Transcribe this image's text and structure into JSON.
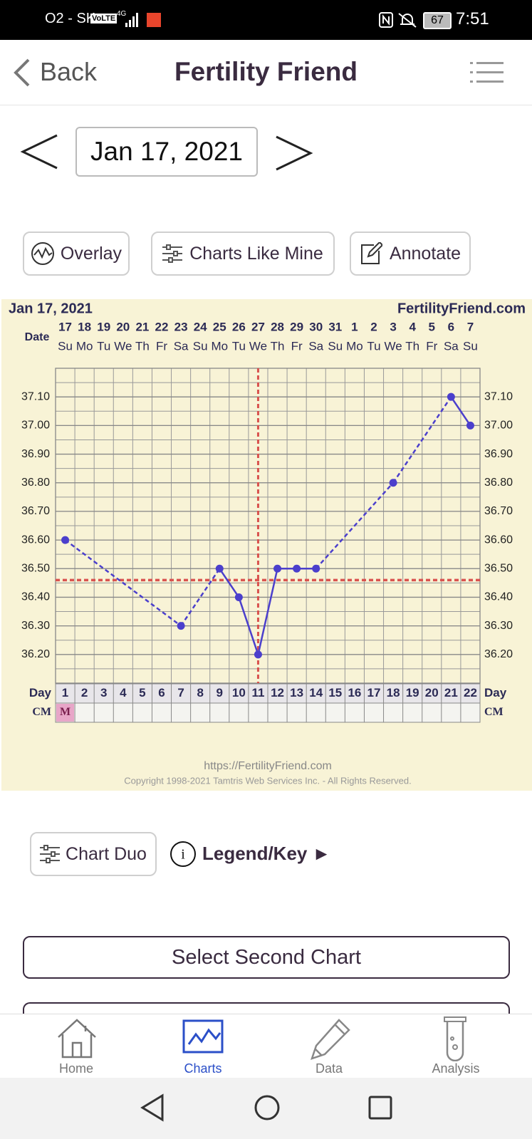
{
  "status_bar": {
    "carrier": "O2 - SK",
    "volte": "VoLTE",
    "network": "4G",
    "battery": "67",
    "time": "7:51"
  },
  "header": {
    "back": "Back",
    "title": "Fertility Friend"
  },
  "date_nav": {
    "date": "Jan 17, 2021"
  },
  "toolbar": [
    "Overlay",
    "Charts Like Mine",
    "Annotate"
  ],
  "chart_data": {
    "type": "line",
    "title": "Jan 17, 2021",
    "site": "FertilityFriend.com",
    "date_label": "Date",
    "day_label": "Day",
    "cm_label": "CM",
    "dates": [
      17,
      18,
      19,
      20,
      21,
      22,
      23,
      24,
      25,
      26,
      27,
      28,
      29,
      30,
      31,
      1,
      2,
      3,
      4,
      5,
      6,
      7
    ],
    "weekdays": [
      "Su",
      "Mo",
      "Tu",
      "We",
      "Th",
      "Fr",
      "Sa",
      "Su",
      "Mo",
      "Tu",
      "We",
      "Th",
      "Fr",
      "Sa",
      "Su",
      "Mo",
      "Tu",
      "We",
      "Th",
      "Fr",
      "Sa",
      "Su"
    ],
    "days": [
      1,
      2,
      3,
      4,
      5,
      6,
      7,
      8,
      9,
      10,
      11,
      12,
      13,
      14,
      15,
      16,
      17,
      18,
      19,
      20,
      21,
      22
    ],
    "cm": [
      "M",
      null,
      null,
      null,
      null,
      null,
      null,
      null,
      null,
      null,
      null,
      null,
      null,
      null,
      null,
      null,
      null,
      null,
      null,
      null,
      null,
      null
    ],
    "series": [
      {
        "name": "Temperature",
        "color": "#4b3fcc",
        "values": [
          36.6,
          null,
          null,
          null,
          null,
          null,
          36.3,
          null,
          36.5,
          36.4,
          36.2,
          36.5,
          36.5,
          36.5,
          null,
          null,
          null,
          36.8,
          null,
          null,
          37.1,
          37.0
        ]
      }
    ],
    "coverline": 36.46,
    "ovulation_day": 11,
    "ylim": [
      36.1,
      37.2
    ],
    "yticks": [
      {
        "value": 36.2,
        "label": "36.20"
      },
      {
        "value": 36.3,
        "label": "36.30"
      },
      {
        "value": 36.4,
        "label": "36.40"
      },
      {
        "value": 36.5,
        "label": "36.50"
      },
      {
        "value": 36.6,
        "label": "36.60"
      },
      {
        "value": 36.7,
        "label": "36.70"
      },
      {
        "value": 36.8,
        "label": "36.80"
      },
      {
        "value": 36.9,
        "label": "36.90"
      },
      {
        "value": 37.0,
        "label": "37.00"
      },
      {
        "value": 37.1,
        "label": "37.10"
      }
    ],
    "grid": true,
    "footer_url": "https://FertilityFriend.com",
    "copyright": "Copyright 1998-2021 Tamtris Web Services Inc. - All Rights Reserved."
  },
  "duo": {
    "chart_duo": "Chart Duo",
    "legend": "Legend/Key ►"
  },
  "select_second": "Select Second Chart",
  "nav": [
    "Home",
    "Charts",
    "Data",
    "Analysis"
  ]
}
